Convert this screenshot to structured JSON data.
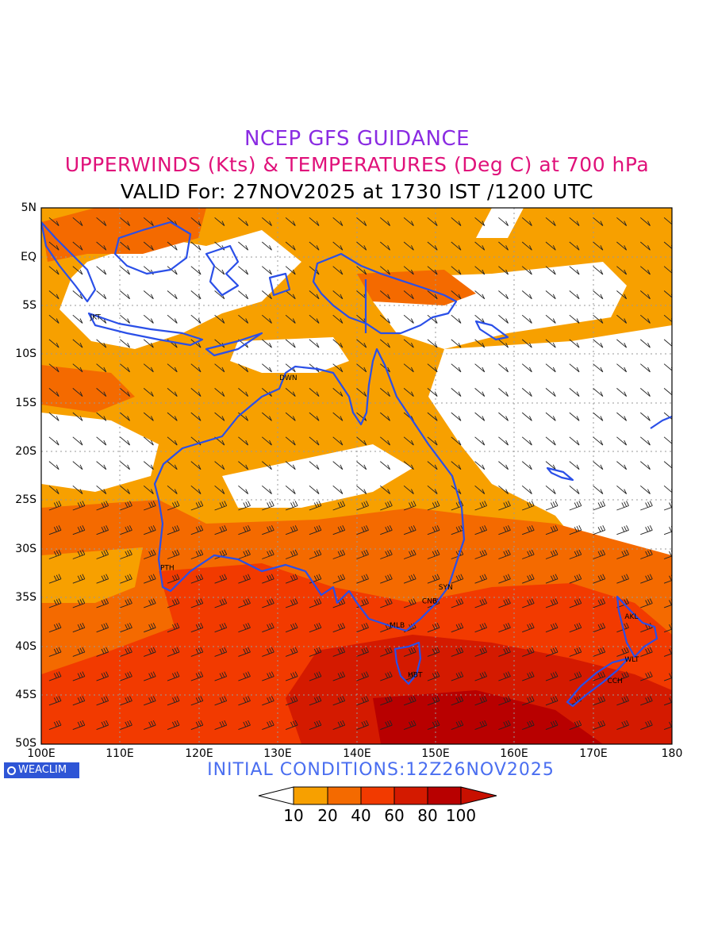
{
  "titles": {
    "line1": "NCEP GFS GUIDANCE",
    "line2": "UPPERWINDS (Kts) & TEMPERATURES (Deg C) at 700 hPa",
    "line3": "VALID For: 27NOV2025 at 1730 IST /1200 UTC"
  },
  "map": {
    "lat_labels": [
      "5N",
      "EQ",
      "5S",
      "10S",
      "15S",
      "20S",
      "25S",
      "30S",
      "35S",
      "40S",
      "45S",
      "50S"
    ],
    "lon_labels": [
      "100E",
      "110E",
      "120E",
      "130E",
      "140E",
      "150E",
      "160E",
      "170E",
      "180"
    ],
    "lon_range": [
      100,
      180
    ],
    "lat_range": [
      -50,
      5
    ],
    "stations": [
      {
        "code": "JKT",
        "lon": 107.0,
        "lat": -6.2
      },
      {
        "code": "DWN",
        "lon": 131.0,
        "lat": -12.4
      },
      {
        "code": "PTH",
        "lon": 115.9,
        "lat": -31.9
      },
      {
        "code": "SYN",
        "lon": 151.2,
        "lat": -33.9
      },
      {
        "code": "CNB",
        "lon": 149.1,
        "lat": -35.3
      },
      {
        "code": "MLB",
        "lon": 145.0,
        "lat": -37.8
      },
      {
        "code": "HBT",
        "lon": 147.3,
        "lat": -42.9
      },
      {
        "code": "AKL",
        "lon": 174.8,
        "lat": -36.9
      },
      {
        "code": "WLT",
        "lon": 174.8,
        "lat": -41.3
      },
      {
        "code": "CCH",
        "lon": 172.6,
        "lat": -43.5
      }
    ],
    "coast_color": "#2a4fe8"
  },
  "colorbar": {
    "labels": [
      "10",
      "20",
      "40",
      "60",
      "80",
      "100"
    ],
    "colors": [
      "#ffffff",
      "#f7a000",
      "#f46a00",
      "#f23a00",
      "#d41a00",
      "#b80000",
      "#c81000"
    ]
  },
  "branding": {
    "logo_text": "WEACLIM"
  },
  "footer": {
    "initial_conditions": "INITIAL CONDITIONS:12Z26NOV2025"
  }
}
